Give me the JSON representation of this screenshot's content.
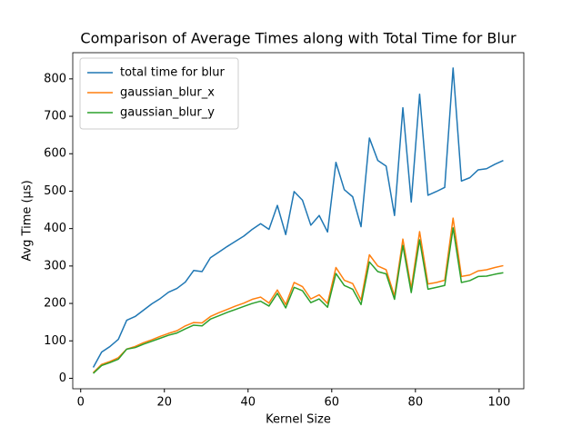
{
  "chart_data": {
    "type": "line",
    "title": "Comparison of Average Times along with Total Time for Blur",
    "xlabel": "Kernel Size",
    "ylabel": "Avg Time (µs)",
    "x": [
      3,
      5,
      7,
      9,
      11,
      13,
      15,
      17,
      19,
      21,
      23,
      25,
      27,
      29,
      31,
      33,
      35,
      37,
      39,
      41,
      43,
      45,
      47,
      49,
      51,
      53,
      55,
      57,
      59,
      61,
      63,
      65,
      67,
      69,
      71,
      73,
      75,
      77,
      79,
      81,
      83,
      85,
      87,
      89,
      91,
      93,
      95,
      97,
      99,
      101
    ],
    "series": [
      {
        "name": "total time for blur",
        "color": "#1f77b4",
        "values": [
          29,
          70,
          85,
          104,
          155,
          165,
          182,
          199,
          213,
          230,
          240,
          257,
          288,
          285,
          322,
          337,
          352,
          366,
          380,
          398,
          413,
          398,
          462,
          384,
          499,
          476,
          409,
          435,
          391,
          577,
          504,
          485,
          405,
          642,
          582,
          567,
          435,
          723,
          471,
          759,
          489,
          499,
          510,
          829,
          527,
          536,
          557,
          560,
          572,
          582
        ]
      },
      {
        "name": "gaussian_blur_x",
        "color": "#ff7f0e",
        "values": [
          15,
          37,
          45,
          55,
          78,
          85,
          95,
          103,
          112,
          120,
          127,
          140,
          149,
          148,
          165,
          175,
          184,
          193,
          201,
          211,
          217,
          201,
          236,
          197,
          256,
          245,
          212,
          223,
          200,
          296,
          262,
          253,
          209,
          330,
          300,
          290,
          220,
          372,
          240,
          392,
          252,
          256,
          262,
          428,
          272,
          276,
          287,
          290,
          296,
          301
        ]
      },
      {
        "name": "gaussian_blur_y",
        "color": "#2ca02c",
        "values": [
          13,
          34,
          42,
          51,
          78,
          82,
          91,
          99,
          107,
          115,
          121,
          132,
          142,
          140,
          158,
          167,
          176,
          184,
          192,
          200,
          206,
          193,
          227,
          188,
          243,
          234,
          202,
          212,
          190,
          280,
          248,
          238,
          197,
          311,
          285,
          279,
          211,
          355,
          229,
          370,
          238,
          243,
          248,
          402,
          256,
          261,
          272,
          273,
          278,
          282
        ]
      }
    ],
    "xlim": [
      -1.9,
      105.9
    ],
    "ylim": [
      -28,
      870
    ],
    "xticks": [
      0,
      20,
      40,
      60,
      80,
      100
    ],
    "yticks": [
      0,
      100,
      200,
      300,
      400,
      500,
      600,
      700,
      800
    ],
    "legend": "upper left"
  }
}
